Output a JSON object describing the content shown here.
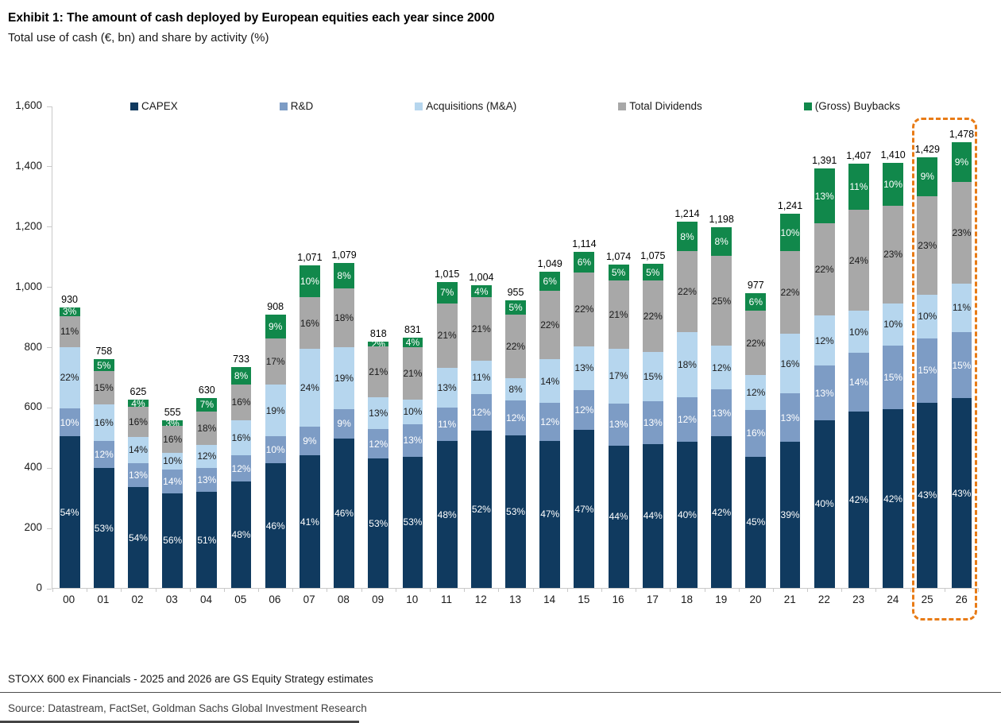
{
  "header": {
    "title": "Exhibit 1: The amount of cash deployed by European equities each year since 2000",
    "subtitle": "Total use of cash (€, bn) and share by activity (%)"
  },
  "chart_data": {
    "type": "bar",
    "subtype": "stacked-bar-with-percent-labels",
    "title": "Exhibit 1: The amount of cash deployed by European equities each year since 2000",
    "subtitle": "Total use of cash (€, bn) and share by activity (%)",
    "categories": [
      "00",
      "01",
      "02",
      "03",
      "04",
      "05",
      "06",
      "07",
      "08",
      "09",
      "10",
      "11",
      "12",
      "13",
      "14",
      "15",
      "16",
      "17",
      "18",
      "19",
      "20",
      "21",
      "22",
      "23",
      "24",
      "25",
      "26"
    ],
    "totals": [
      930,
      758,
      625,
      555,
      630,
      733,
      908,
      1071,
      1079,
      818,
      831,
      1015,
      1004,
      955,
      1049,
      1114,
      1074,
      1075,
      1214,
      1198,
      977,
      1241,
      1391,
      1407,
      1410,
      1429,
      1478
    ],
    "total_labels": [
      "930",
      "758",
      "625",
      "555",
      "630",
      "733",
      "908",
      "1,071",
      "1,079",
      "818",
      "831",
      "1,015",
      "1,004",
      "955",
      "1,049",
      "1,114",
      "1,074",
      "1,075",
      "1,214",
      "1,198",
      "977",
      "1,241",
      "1,391",
      "1,407",
      "1,410",
      "1,429",
      "1,478"
    ],
    "series": [
      {
        "name": "CAPEX",
        "color": "#103a5f",
        "label_color": "#ffffff",
        "values": [
          54,
          53,
          54,
          56,
          51,
          48,
          46,
          41,
          46,
          53,
          53,
          48,
          52,
          53,
          47,
          47,
          44,
          44,
          40,
          42,
          45,
          39,
          40,
          42,
          42,
          43,
          43
        ]
      },
      {
        "name": "R&D",
        "color": "#7d9cc5",
        "label_color": "#ffffff",
        "values": [
          10,
          12,
          13,
          14,
          13,
          12,
          10,
          9,
          9,
          12,
          13,
          11,
          12,
          12,
          12,
          12,
          13,
          13,
          12,
          13,
          16,
          13,
          13,
          14,
          15,
          15,
          15
        ]
      },
      {
        "name": "Acquisitions (M&A)",
        "color": "#b6d6ee",
        "label_color": "#1a1a1a",
        "values": [
          22,
          16,
          14,
          10,
          12,
          16,
          19,
          24,
          19,
          13,
          10,
          13,
          11,
          8,
          14,
          13,
          17,
          15,
          18,
          12,
          12,
          16,
          12,
          10,
          10,
          10,
          11
        ]
      },
      {
        "name": "Total Dividends",
        "color": "#a8a8a8",
        "label_color": "#1a1a1a",
        "values": [
          11,
          15,
          16,
          16,
          18,
          16,
          17,
          16,
          18,
          21,
          21,
          21,
          21,
          22,
          22,
          22,
          21,
          22,
          22,
          25,
          22,
          22,
          22,
          24,
          23,
          23,
          23
        ]
      },
      {
        "name": "(Gross) Buybacks",
        "color": "#11884b",
        "label_color": "#ffffff",
        "values": [
          3,
          5,
          4,
          3,
          7,
          8,
          9,
          10,
          8,
          2,
          4,
          7,
          4,
          5,
          6,
          6,
          5,
          5,
          8,
          8,
          6,
          10,
          13,
          11,
          10,
          9,
          9
        ]
      }
    ],
    "unit": "%",
    "ylim": [
      0,
      1600
    ],
    "yticks": [
      {
        "value": 0,
        "label": "0"
      },
      {
        "value": 200,
        "label": "200"
      },
      {
        "value": 400,
        "label": "400"
      },
      {
        "value": 600,
        "label": "600"
      },
      {
        "value": 800,
        "label": "800"
      },
      {
        "value": 1000,
        "label": "1,000"
      },
      {
        "value": 1200,
        "label": "1,200"
      },
      {
        "value": 1400,
        "label": "1,400"
      },
      {
        "value": 1600,
        "label": "1,600"
      }
    ],
    "grid": false,
    "legend_position": "top",
    "highlight": {
      "categories": [
        "25",
        "26"
      ],
      "box_color": "#e87b16",
      "style": "dashed-rounded"
    }
  },
  "footer": {
    "note": "STOXX 600 ex Financials - 2025 and 2026 are GS Equity Strategy estimates",
    "source": "Source: Datastream, FactSet, Goldman Sachs Global Investment Research"
  }
}
